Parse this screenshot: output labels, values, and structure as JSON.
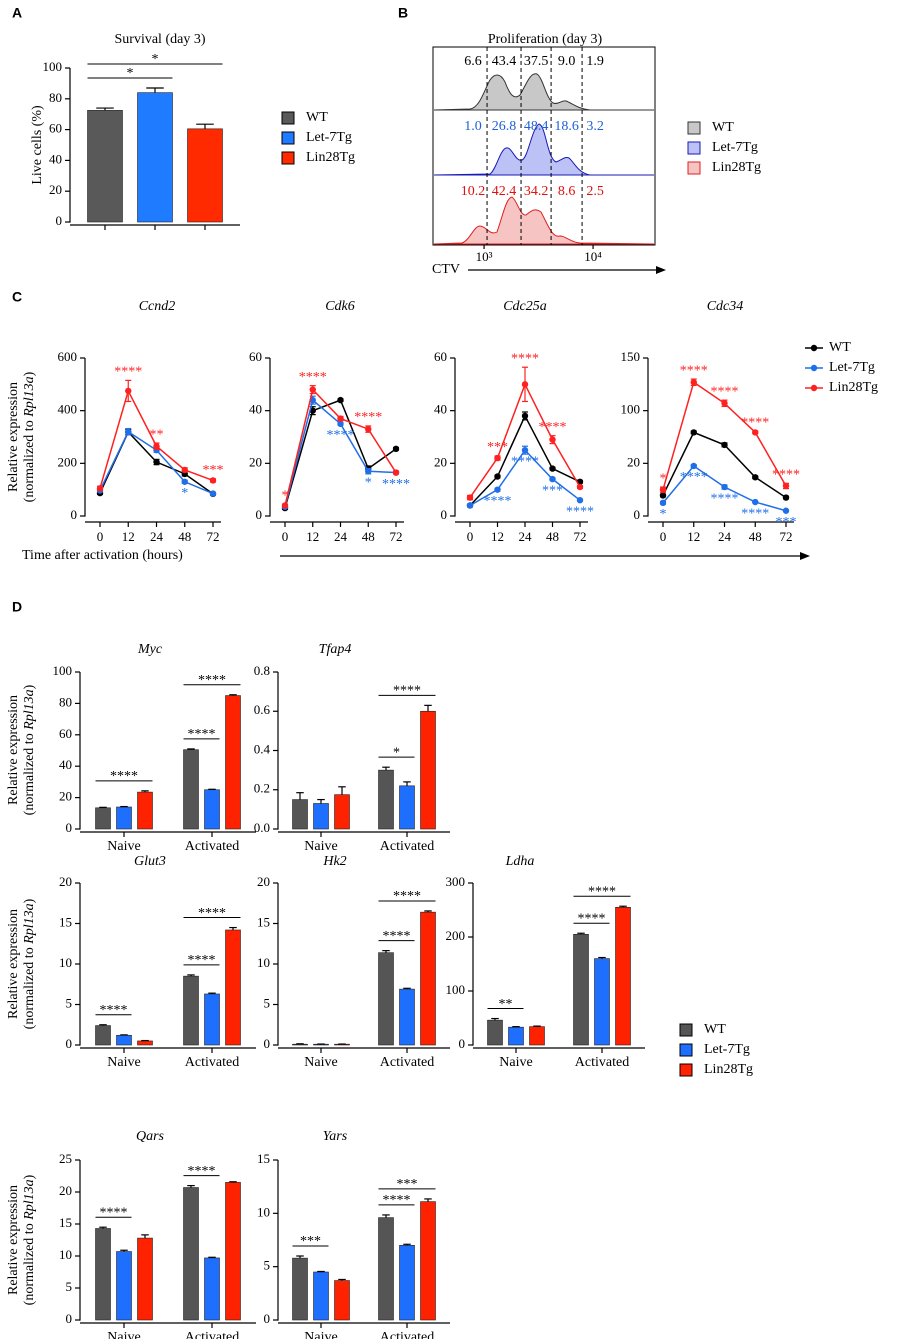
{
  "panel_labels": [
    "A",
    "B",
    "C",
    "D"
  ],
  "chart_data": [
    {
      "type": "bar",
      "title": "Survival (day 3)",
      "ylabel": "Live cells (%)",
      "ylim": [
        0,
        100
      ],
      "yticks": [
        0,
        20,
        40,
        60,
        80,
        100
      ],
      "legend": "right",
      "series": [
        {
          "name": "WT",
          "color": "#595959",
          "values": [
            72.5
          ],
          "errors": [
            1.5
          ]
        },
        {
          "name": "Let-7Tg",
          "color": "#1f7bff",
          "values": [
            84
          ],
          "errors": [
            3
          ]
        },
        {
          "name": "Lin28Tg",
          "color": "#ff2a00",
          "values": [
            60.5
          ],
          "errors": [
            3
          ]
        }
      ],
      "brackets": [
        {
          "group": 0,
          "from": 0,
          "to": 1,
          "label": "*"
        },
        {
          "group": 0,
          "from": 0,
          "to": 2,
          "label": "*"
        }
      ]
    },
    {
      "type": "flow",
      "title": "Proliferation (day 3)",
      "xlabel": "CTV",
      "xscale": "log",
      "xlim": [
        340,
        37000
      ],
      "xticks": [
        {
          "value": 1000,
          "label": "10³"
        },
        {
          "value": 10000,
          "label": "10⁴"
        }
      ],
      "gates": [
        1065,
        2184,
        4120,
        7930
      ],
      "legend": "right",
      "series": [
        {
          "name": "WT",
          "color": "#c8c8c8",
          "edge_color": "#333333",
          "label_color": "#000000",
          "values": [
            6.6,
            43.4,
            37.5,
            9.0,
            1.9
          ],
          "value_labels": [
            "6.6",
            "43.4",
            "37.5",
            "9.0",
            "1.9"
          ]
        },
        {
          "name": "Let-7Tg",
          "color": "#bcc2f5",
          "edge_color": "#1a1ab4",
          "label_color": "#1f5fd8",
          "values": [
            1.0,
            26.8,
            48.4,
            18.6,
            3.2
          ],
          "value_labels": [
            "1.0",
            "26.8",
            "48.4",
            "18.6",
            "3.2"
          ]
        },
        {
          "name": "Lin28Tg",
          "color": "#f7c4c4",
          "edge_color": "#e02020",
          "label_color": "#e01010",
          "values": [
            10.2,
            42.4,
            34.2,
            8.6,
            2.5
          ]
        }
      ]
    },
    {
      "type": "line",
      "title": "Ccnd2",
      "ylabel": [
        "Relative expression",
        "(normalized to ",
        "Rpl13a",
        ")"
      ],
      "xlabel": "Time after activation (hours)",
      "categories": [
        "0",
        "12",
        "24",
        "48",
        "72"
      ],
      "ylim": [
        0,
        600
      ],
      "yticks": [
        0,
        200,
        400,
        600
      ],
      "series": [
        {
          "name": "WT",
          "color": "#000000",
          "values": [
            87,
            319,
            205,
            160,
            84
          ],
          "errors": [
            5,
            10,
            10,
            8,
            5
          ],
          "stars": [
            null,
            null,
            null,
            null,
            null
          ]
        },
        {
          "name": "Let-7Tg",
          "color": "#1f6fe8",
          "values": [
            97,
            320,
            250,
            130,
            85
          ],
          "errors": [
            5,
            12,
            8,
            6,
            5
          ],
          "stars": [
            null,
            null,
            null,
            "*",
            null
          ]
        },
        {
          "name": "Lin28Tg",
          "color": "#ff2020",
          "values": [
            105,
            475,
            265,
            175,
            135
          ],
          "errors": [
            8,
            40,
            12,
            8,
            6
          ],
          "stars": [
            null,
            "****",
            "**",
            null,
            "***"
          ]
        }
      ]
    },
    {
      "type": "line",
      "title": "Cdk6",
      "categories": [
        "0",
        "12",
        "24",
        "48",
        "72"
      ],
      "ylim": [
        0,
        60
      ],
      "yticks": [
        0,
        20,
        40,
        60
      ],
      "series": [
        {
          "name": "WT",
          "color": "#000000",
          "values": [
            3,
            40,
            44,
            18,
            25.5
          ],
          "errors": [
            0.5,
            1.5,
            0.5,
            1,
            0.5
          ],
          "stars": [
            null,
            null,
            null,
            null,
            null
          ]
        },
        {
          "name": "Let-7Tg",
          "color": "#1f6fe8",
          "values": [
            3.5,
            44,
            35,
            17,
            16.5
          ],
          "errors": [
            0.5,
            1.5,
            0.5,
            1,
            0.5
          ],
          "stars": [
            null,
            null,
            "****",
            "*",
            "****"
          ]
        },
        {
          "name": "Lin28Tg",
          "color": "#ff2020",
          "values": [
            4,
            48,
            37,
            33,
            16.5
          ],
          "errors": [
            0.5,
            1.5,
            0.8,
            1.2,
            0.5
          ],
          "stars": [
            "*",
            "****",
            null,
            "****",
            null
          ]
        }
      ]
    },
    {
      "type": "line",
      "title": "Cdc25a",
      "categories": [
        "0",
        "12",
        "24",
        "48",
        "72"
      ],
      "ylim": [
        0,
        60
      ],
      "yticks": [
        0,
        20,
        40,
        60
      ],
      "series": [
        {
          "name": "WT",
          "color": "#000000",
          "values": [
            4,
            15,
            38,
            18,
            13
          ],
          "errors": [
            0.5,
            0.5,
            1.5,
            0.5,
            0.5
          ],
          "stars": [
            null,
            null,
            null,
            null,
            null
          ]
        },
        {
          "name": "Let-7Tg",
          "color": "#1f6fe8",
          "values": [
            4,
            10,
            25,
            14,
            6
          ],
          "errors": [
            0.5,
            0.5,
            1.5,
            0.5,
            0.3
          ],
          "stars": [
            null,
            "****",
            "****",
            "***",
            "****"
          ]
        },
        {
          "name": "Lin28Tg",
          "color": "#ff2020",
          "values": [
            7,
            22,
            50,
            29,
            11
          ],
          "errors": [
            0.8,
            0.8,
            6.5,
            1.5,
            0.5
          ],
          "stars": [
            null,
            "***",
            "****",
            "****",
            null
          ]
        }
      ]
    },
    {
      "type": "line",
      "title": "Cdc34",
      "categories": [
        "0",
        "12",
        "24",
        "48",
        "72"
      ],
      "ylim": [
        0,
        150
      ],
      "yticks": [
        0,
        20,
        100,
        150
      ],
      "legend": "right",
      "series": [
        {
          "name": "WT",
          "color": "#000000",
          "values": [
            7.8,
            67,
            48,
            14.7,
            7
          ],
          "errors": [
            0.5,
            2,
            3,
            0.5,
            0.5
          ],
          "stars": [
            null,
            null,
            null,
            null,
            null
          ]
        },
        {
          "name": "Let-7Tg",
          "color": "#1f6fe8",
          "values": [
            5,
            19,
            11,
            5.3,
            2
          ],
          "errors": [
            0.5,
            0.5,
            0.8,
            0.3,
            0.2
          ],
          "stars": [
            "*",
            "****",
            "****",
            "****",
            "***"
          ]
        },
        {
          "name": "Lin28Tg",
          "color": "#ff2020",
          "values": [
            10,
            127,
            107,
            67,
            11.4
          ],
          "errors": [
            1,
            3,
            3,
            2,
            1
          ],
          "stars": [
            "*",
            "****",
            "****",
            "****",
            "****"
          ]
        }
      ]
    },
    {
      "type": "bar",
      "title": "Myc",
      "ylabel": [
        "Relative expression",
        "(normalized to ",
        "Rpl13a",
        ")"
      ],
      "categories": [
        "Naive",
        "Activated"
      ],
      "ylim": [
        0,
        100
      ],
      "yticks": [
        0,
        20,
        40,
        60,
        80,
        100
      ],
      "series": [
        {
          "name": "WT",
          "color": "#555555",
          "values": [
            13.5,
            50.5
          ],
          "errors": [
            0.3,
            0.5
          ]
        },
        {
          "name": "Let-7Tg",
          "color": "#1f6fff",
          "values": [
            14,
            25
          ],
          "errors": [
            0.3,
            0.3
          ]
        },
        {
          "name": "Lin28Tg",
          "color": "#ff2200",
          "values": [
            23.5,
            85
          ],
          "errors": [
            0.8,
            0.5
          ]
        }
      ],
      "brackets": [
        {
          "group": 0,
          "from": 0,
          "to": 2,
          "label": "****"
        },
        {
          "group": 1,
          "from": 0,
          "to": 1,
          "label": "****"
        },
        {
          "group": 1,
          "from": 0,
          "to": 2,
          "label": "****"
        }
      ]
    },
    {
      "type": "bar",
      "title": "Tfap4",
      "categories": [
        "Naive",
        "Activated"
      ],
      "ylim": [
        0,
        0.8
      ],
      "yticks": [
        {
          "value": 0,
          "label": "0.0"
        },
        0.2,
        0.4,
        0.6,
        0.8
      ],
      "series": [
        {
          "name": "WT",
          "color": "#555555",
          "values": [
            0.15,
            0.3
          ],
          "errors": [
            0.035,
            0.015
          ]
        },
        {
          "name": "Let-7Tg",
          "color": "#1f6fff",
          "values": [
            0.13,
            0.22
          ],
          "errors": [
            0.02,
            0.02
          ]
        },
        {
          "name": "Lin28Tg",
          "color": "#ff2200",
          "values": [
            0.175,
            0.6
          ],
          "errors": [
            0.04,
            0.03
          ]
        }
      ],
      "brackets": [
        {
          "group": 1,
          "from": 0,
          "to": 1,
          "label": "*"
        },
        {
          "group": 1,
          "from": 0,
          "to": 2,
          "label": "****"
        }
      ]
    },
    {
      "type": "bar",
      "title": "Glut3",
      "ylabel": [
        "Relative expression",
        "(normalized to ",
        "Rpl13a",
        ")"
      ],
      "categories": [
        "Naive",
        "Activated"
      ],
      "ylim": [
        0,
        20
      ],
      "yticks": [
        0,
        5,
        10,
        15,
        20
      ],
      "series": [
        {
          "name": "WT",
          "color": "#555555",
          "values": [
            2.4,
            8.5
          ],
          "errors": [
            0.1,
            0.15
          ]
        },
        {
          "name": "Let-7Tg",
          "color": "#1f6fff",
          "values": [
            1.2,
            6.3
          ],
          "errors": [
            0.05,
            0.1
          ]
        },
        {
          "name": "Lin28Tg",
          "color": "#ff2200",
          "values": [
            0.5,
            14.2
          ],
          "errors": [
            0.05,
            0.3
          ]
        }
      ],
      "brackets": [
        {
          "group": 0,
          "from": 0,
          "to": 1,
          "label": "****"
        },
        {
          "group": 1,
          "from": 0,
          "to": 1,
          "label": "****"
        },
        {
          "group": 1,
          "from": 0,
          "to": 2,
          "label": "****"
        }
      ]
    },
    {
      "type": "bar",
      "title": "Hk2",
      "categories": [
        "Naive",
        "Activated"
      ],
      "ylim": [
        0,
        20
      ],
      "yticks": [
        0,
        5,
        10,
        15,
        20
      ],
      "series": [
        {
          "name": "WT",
          "color": "#555555",
          "values": [
            0.1,
            11.4
          ],
          "errors": [
            0.05,
            0.25
          ]
        },
        {
          "name": "Let-7Tg",
          "color": "#1f6fff",
          "values": [
            0.1,
            6.9
          ],
          "errors": [
            0.02,
            0.1
          ]
        },
        {
          "name": "Lin28Tg",
          "color": "#ff2200",
          "values": [
            0.1,
            16.4
          ],
          "errors": [
            0.02,
            0.15
          ]
        }
      ],
      "brackets": [
        {
          "group": 1,
          "from": 0,
          "to": 1,
          "label": "****"
        },
        {
          "group": 1,
          "from": 0,
          "to": 2,
          "label": "****"
        }
      ]
    },
    {
      "type": "bar",
      "title": "Ldha",
      "categories": [
        "Naive",
        "Activated"
      ],
      "ylim": [
        0,
        300
      ],
      "yticks": [
        0,
        100,
        200,
        300
      ],
      "legend": "right",
      "series": [
        {
          "name": "WT",
          "color": "#555555",
          "values": [
            46,
            205
          ],
          "errors": [
            3,
            2
          ]
        },
        {
          "name": "Let-7Tg",
          "color": "#1f6fff",
          "values": [
            33,
            160
          ],
          "errors": [
            1,
            2
          ]
        },
        {
          "name": "Lin28Tg",
          "color": "#ff2200",
          "values": [
            34,
            255
          ],
          "errors": [
            1,
            2
          ]
        }
      ],
      "brackets": [
        {
          "group": 0,
          "from": 0,
          "to": 1,
          "label": "**"
        },
        {
          "group": 1,
          "from": 0,
          "to": 1,
          "label": "****"
        },
        {
          "group": 1,
          "from": 0,
          "to": 2,
          "label": "****"
        }
      ]
    },
    {
      "type": "bar",
      "title": "Qars",
      "ylabel": [
        "Relative expression",
        "(normalized to ",
        "Rpl13a",
        ")"
      ],
      "categories": [
        "Naive",
        "Activated"
      ],
      "ylim": [
        0,
        25
      ],
      "yticks": [
        0,
        5,
        10,
        15,
        20,
        25
      ],
      "series": [
        {
          "name": "WT",
          "color": "#555555",
          "values": [
            14.3,
            20.7
          ],
          "errors": [
            0.2,
            0.3
          ]
        },
        {
          "name": "Let-7Tg",
          "color": "#1f6fff",
          "values": [
            10.7,
            9.7
          ],
          "errors": [
            0.2,
            0.1
          ]
        },
        {
          "name": "Lin28Tg",
          "color": "#ff2200",
          "values": [
            12.8,
            21.5
          ],
          "errors": [
            0.5,
            0.1
          ]
        }
      ],
      "brackets": [
        {
          "group": 0,
          "from": 0,
          "to": 1,
          "label": "****"
        },
        {
          "group": 1,
          "from": 0,
          "to": 1,
          "label": "****"
        }
      ]
    },
    {
      "type": "bar",
      "title": "Yars",
      "categories": [
        "Naive",
        "Activated"
      ],
      "ylim": [
        0,
        15
      ],
      "yticks": [
        0,
        5,
        10,
        15
      ],
      "series": [
        {
          "name": "WT",
          "color": "#555555",
          "values": [
            5.8,
            9.6
          ],
          "errors": [
            0.2,
            0.25
          ]
        },
        {
          "name": "Let-7Tg",
          "color": "#1f6fff",
          "values": [
            4.5,
            7.0
          ],
          "errors": [
            0.05,
            0.1
          ]
        },
        {
          "name": "Lin28Tg",
          "color": "#ff2200",
          "values": [
            3.7,
            11.1
          ],
          "errors": [
            0.1,
            0.25
          ]
        }
      ],
      "brackets": [
        {
          "group": 0,
          "from": 0,
          "to": 1,
          "label": "***"
        },
        {
          "group": 1,
          "from": 0,
          "to": 1,
          "label": "****"
        },
        {
          "group": 1,
          "from": 0,
          "to": 2,
          "label": "***"
        }
      ]
    }
  ]
}
